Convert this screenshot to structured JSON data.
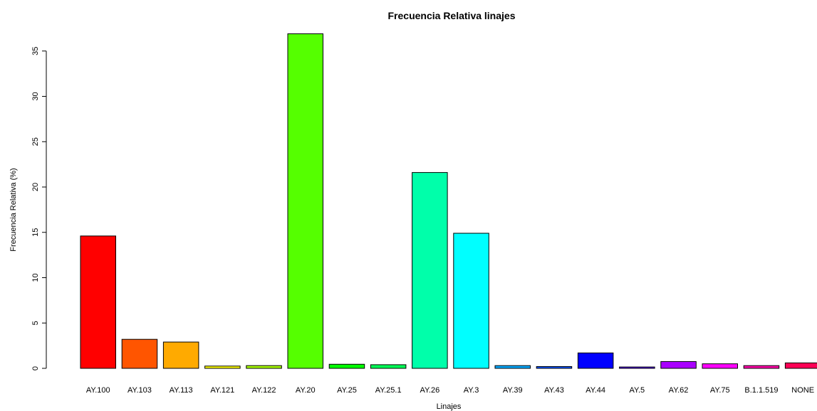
{
  "chart_data": {
    "type": "bar",
    "title": "Frecuencia Relativa linajes",
    "xlabel": "Linajes",
    "ylabel": "Frecuencia Relativa (%)",
    "ylim": [
      0,
      37
    ],
    "yticks": [
      "0",
      "5",
      "10",
      "15",
      "20",
      "25",
      "30",
      "35"
    ],
    "grid": false,
    "legend": "none",
    "categories": [
      "AY.100",
      "AY.103",
      "AY.113",
      "AY.121",
      "AY.122",
      "AY.20",
      "AY.25",
      "AY.25.1",
      "AY.26",
      "AY.3",
      "AY.39",
      "AY.43",
      "AY.44",
      "AY.5",
      "AY.62",
      "AY.75",
      "B.1.1.519",
      "NONE"
    ],
    "values": [
      14.6,
      3.2,
      2.9,
      0.25,
      0.3,
      36.9,
      0.45,
      0.4,
      21.6,
      14.9,
      0.3,
      0.2,
      1.7,
      0.15,
      0.75,
      0.5,
      0.3,
      0.6
    ],
    "colors": [
      "#FF0000",
      "#FF5500",
      "#FFAA00",
      "#FFFF00",
      "#AAFF00",
      "#55FF00",
      "#00FF00",
      "#00FF55",
      "#00FFAA",
      "#00FFFF",
      "#00AAFF",
      "#0055FF",
      "#0000FF",
      "#5500FF",
      "#AA00FF",
      "#FF00FF",
      "#FF00AA",
      "#FF0055"
    ]
  }
}
